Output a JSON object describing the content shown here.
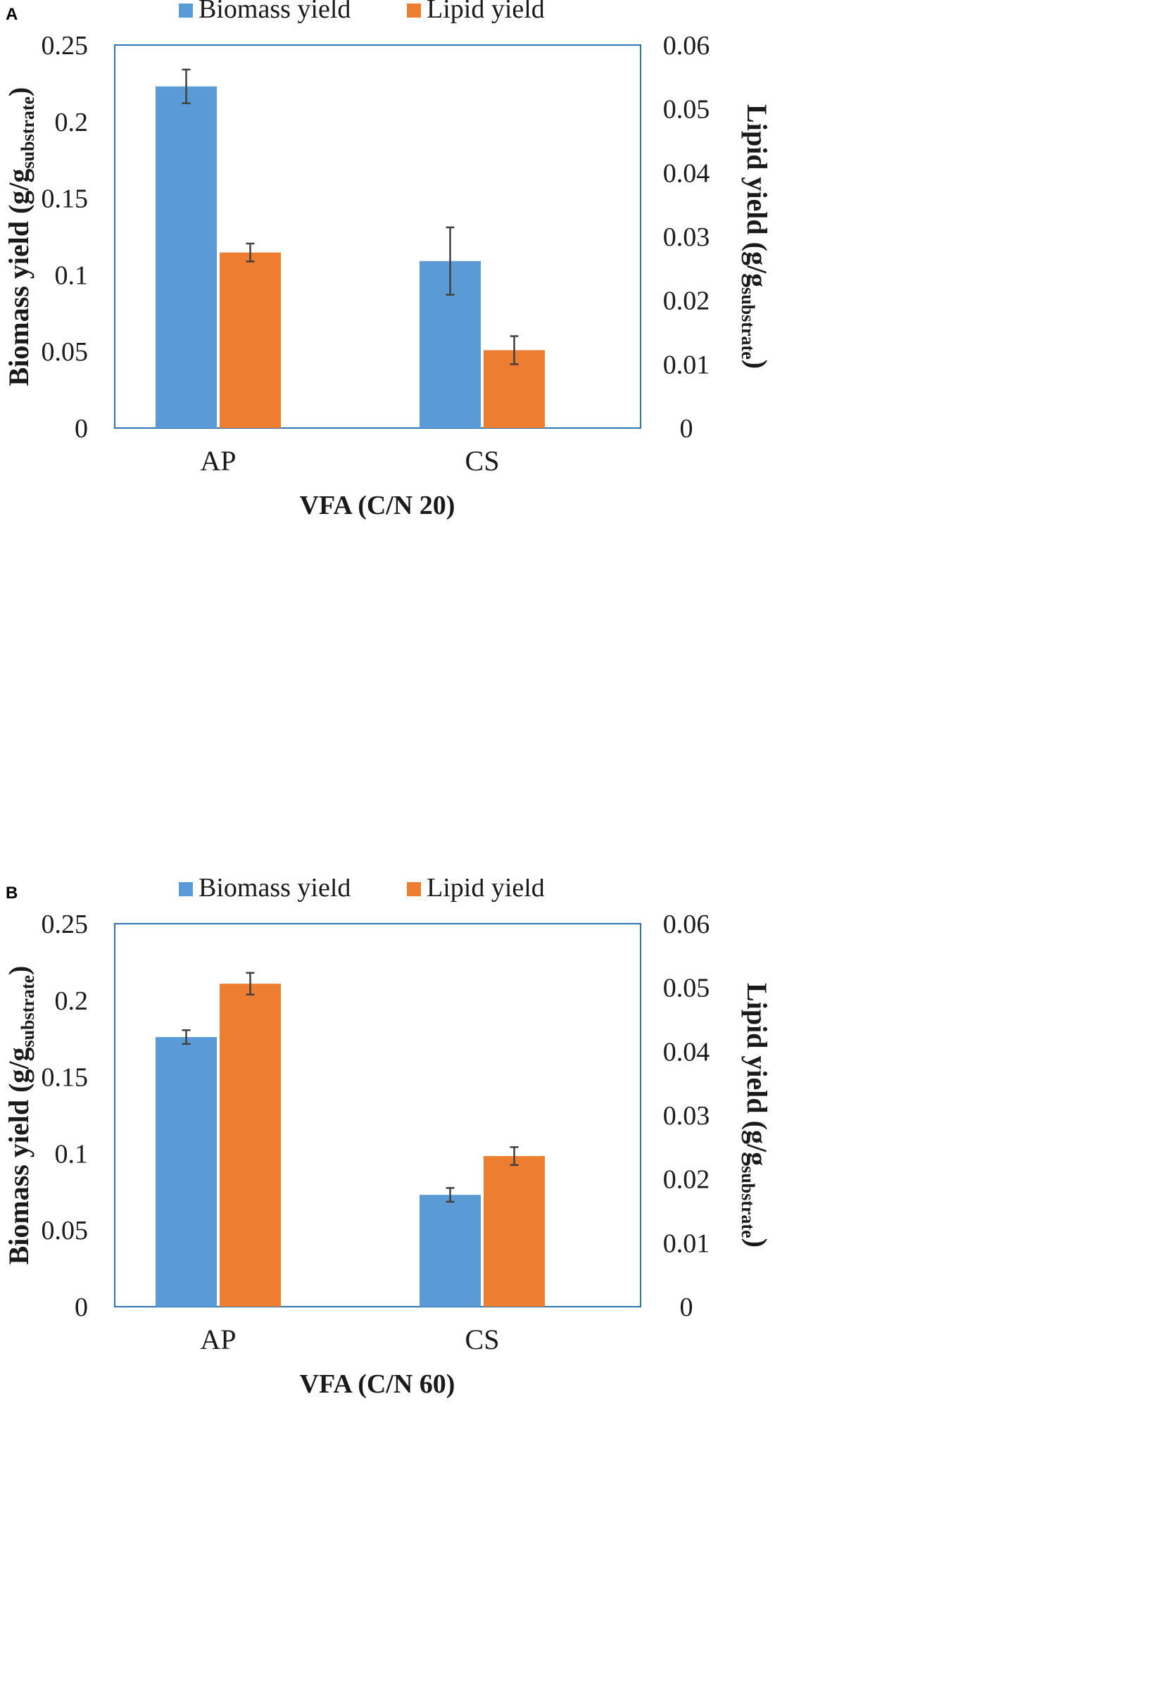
{
  "colors": {
    "biomass": "#5B9BD5",
    "lipid": "#ED7D31",
    "frame": "#2E75B6",
    "error_bar": "#404040",
    "text": "#1a1a1a"
  },
  "chart_data": [
    {
      "panel_label": "A",
      "type": "bar",
      "title": "",
      "legend": [
        "Biomass yield",
        "Lipid yield"
      ],
      "xlabel": "VFA (C/N 20)",
      "ylabel_main": "Biomass yield (g/g",
      "ylabel_sub": "substrate",
      "ylabel_close": ")",
      "y2label_main": "Lipid yield (g/g",
      "y2label_sub": "substrate",
      "y2label_close": ")",
      "categories": [
        "AP",
        "CS"
      ],
      "ylim": [
        0,
        0.25
      ],
      "yticks": [
        "0",
        "0.05",
        "0.1",
        "0.15",
        "0.2",
        "0.25"
      ],
      "y2lim": [
        0,
        0.06
      ],
      "y2ticks": [
        "0",
        "0.01",
        "0.02",
        "0.03",
        "0.04",
        "0.05",
        "0.06"
      ],
      "series": [
        {
          "name": "Biomass yield",
          "axis": "left",
          "values": [
            0.223,
            0.109
          ],
          "errors": [
            0.011,
            0.022
          ]
        },
        {
          "name": "Lipid yield",
          "axis": "right",
          "values": [
            0.0275,
            0.0122
          ],
          "errors": [
            0.0014,
            0.0022
          ]
        }
      ]
    },
    {
      "panel_label": "B",
      "type": "bar",
      "title": "",
      "legend": [
        "Biomass yield",
        "Lipid yield"
      ],
      "xlabel": "VFA (C/N 60)",
      "ylabel_main": "Biomass yield (g/g",
      "ylabel_sub": "substrate",
      "ylabel_close": ")",
      "y2label_main": "Lipid yield (g/g",
      "y2label_sub": "substrate",
      "y2label_close": ")",
      "categories": [
        "AP",
        "CS"
      ],
      "ylim": [
        0,
        0.25
      ],
      "yticks": [
        "0",
        "0.05",
        "0.1",
        "0.15",
        "0.2",
        "0.25"
      ],
      "y2lim": [
        0,
        0.06
      ],
      "y2ticks": [
        "0",
        "0.01",
        "0.02",
        "0.03",
        "0.04",
        "0.05",
        "0.06"
      ],
      "series": [
        {
          "name": "Biomass yield",
          "axis": "left",
          "values": [
            0.176,
            0.073
          ],
          "errors": [
            0.0045,
            0.0045
          ]
        },
        {
          "name": "Lipid yield",
          "axis": "right",
          "values": [
            0.0506,
            0.0236
          ],
          "errors": [
            0.0017,
            0.0014
          ]
        }
      ]
    }
  ]
}
